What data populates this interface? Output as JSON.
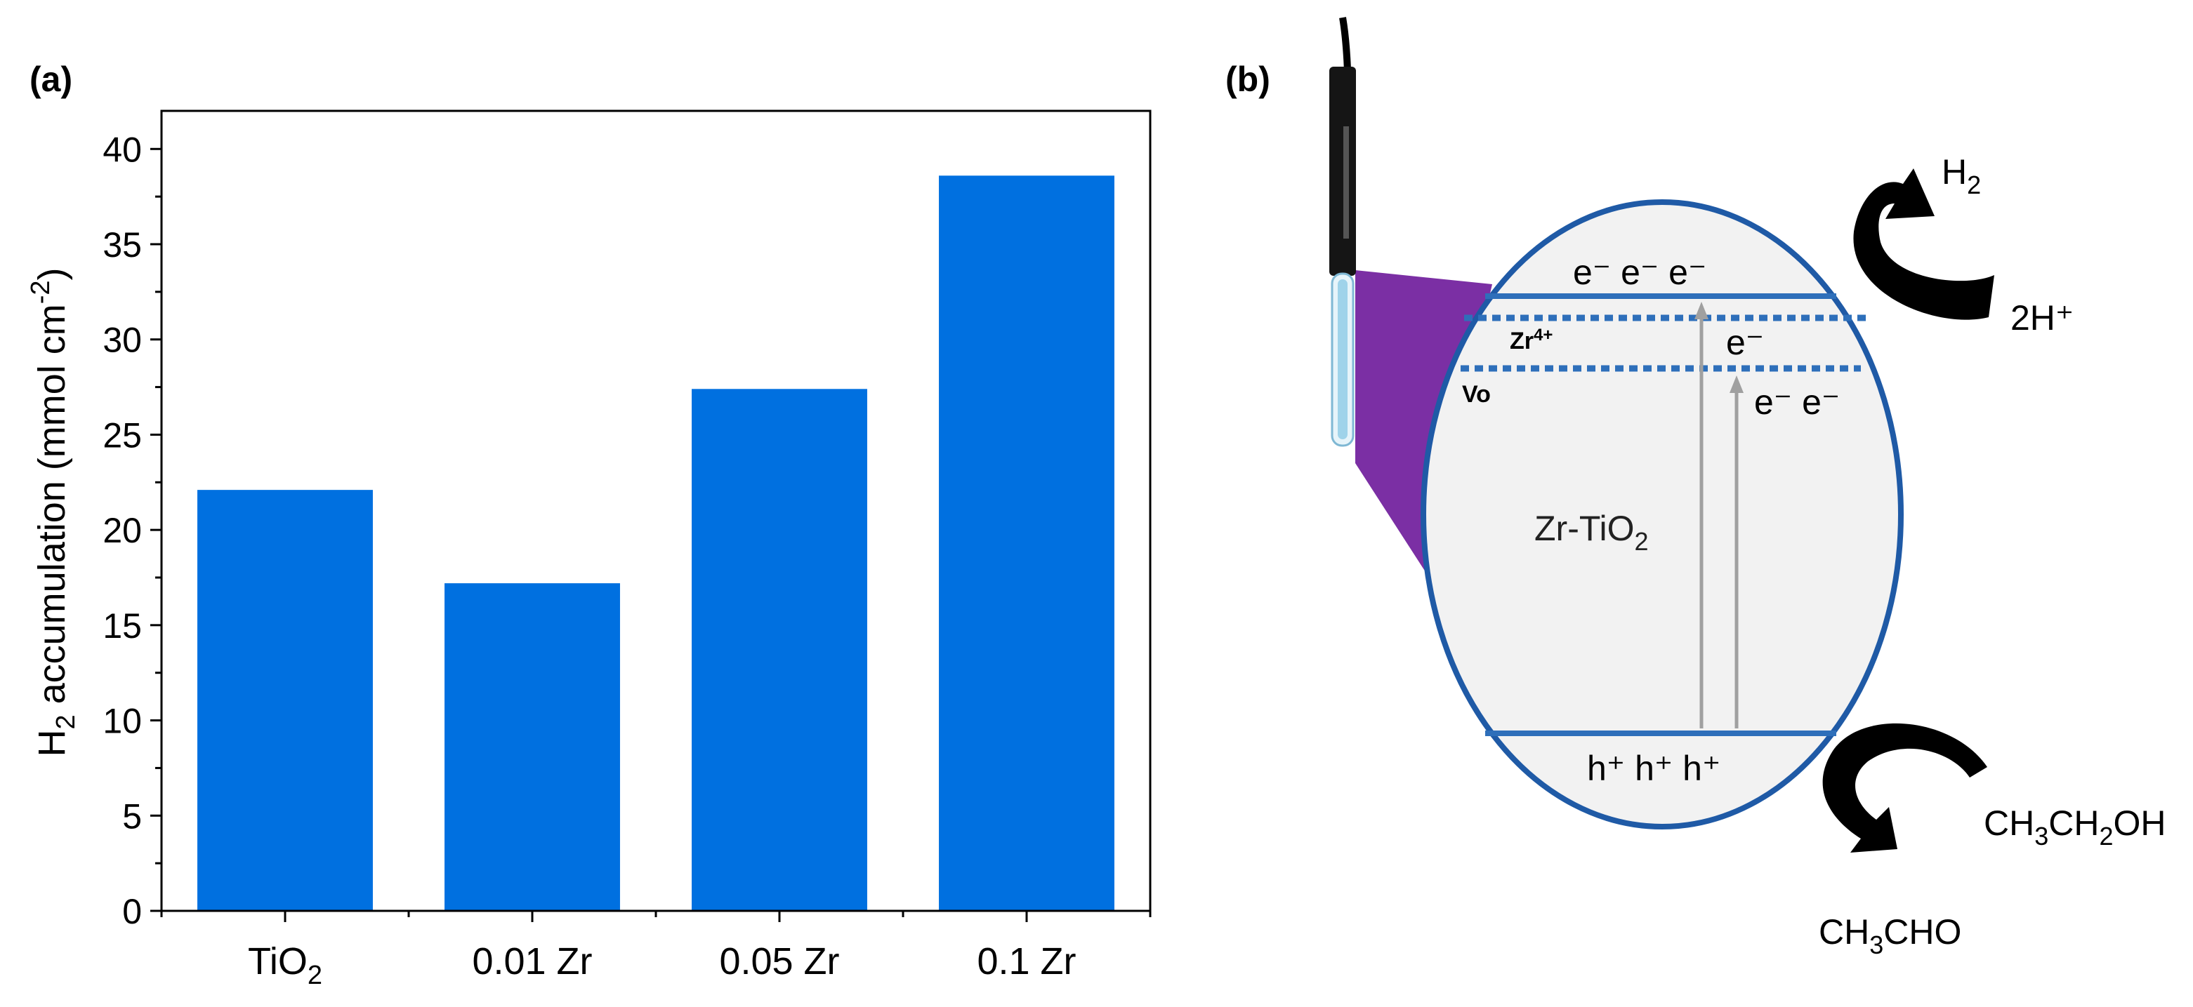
{
  "panel_a": {
    "label": "(a)",
    "ylabel_main": "H",
    "ylabel_sub": "2",
    "ylabel_rest": " accumulation (mmol cm",
    "ylabel_sup": "-2",
    "ylabel_end": ")"
  },
  "chart_data": {
    "type": "bar",
    "categories": [
      "TiO2",
      "0.01 Zr",
      "0.05 Zr",
      "0.1 Zr"
    ],
    "category_display": [
      {
        "main": "TiO",
        "sub": "2"
      },
      {
        "main": "0.01 Zr",
        "sub": ""
      },
      {
        "main": "0.05 Zr",
        "sub": ""
      },
      {
        "main": "0.1 Zr",
        "sub": ""
      }
    ],
    "values": [
      22.1,
      17.2,
      27.4,
      38.6
    ],
    "ylabel": "H2 accumulation (mmol cm-2)",
    "ylim": [
      0,
      42
    ],
    "yticks": [
      0,
      5,
      10,
      15,
      20,
      25,
      30,
      35,
      40
    ],
    "bar_color": "#0070e0",
    "grid": false
  },
  "panel_b": {
    "label": "(b)",
    "material_main": "Zr-TiO",
    "material_sub": "2",
    "zr_level_main": "Zr",
    "zr_level_sup": "4+",
    "vo_label": "Vo",
    "cb_electrons": "e⁻ e⁻ e⁻",
    "zr_electron": "e⁻",
    "vo_electrons": "e⁻ e⁻",
    "vb_holes": "h⁺ h⁺ h⁺",
    "h2_main": "H",
    "h2_sub": "2",
    "proton_label": "2H⁺",
    "ethanol": [
      {
        "t": "CH",
        "s": false
      },
      {
        "t": "3",
        "s": true
      },
      {
        "t": "CH",
        "s": false
      },
      {
        "t": "2",
        "s": true
      },
      {
        "t": "OH",
        "s": false
      }
    ],
    "acetaldehyde": [
      {
        "t": "CH",
        "s": false
      },
      {
        "t": "3",
        "s": true
      },
      {
        "t": "CHO",
        "s": false
      }
    ],
    "ellipse_color": "#1f5aa6",
    "ellipse_fill": "#f2f2f2",
    "light_color": "#7b2fa4",
    "arrow_color": "#a0a0a0",
    "band_color": "#2e6fba",
    "icons": [
      "uv-lamp-icon",
      "curved-arrow-icon"
    ]
  }
}
